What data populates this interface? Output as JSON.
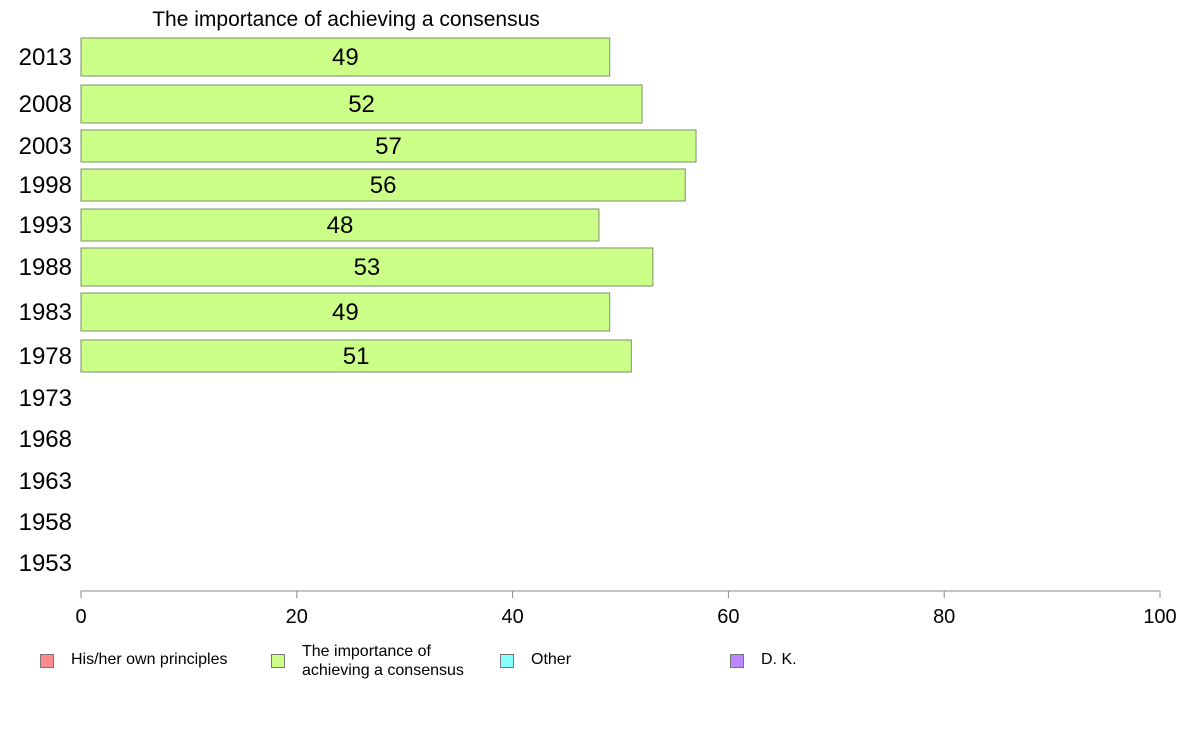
{
  "chart_data": {
    "type": "bar",
    "orientation": "horizontal",
    "title": "The importance of achieving a consensus",
    "categories": [
      "2013",
      "2008",
      "2003",
      "1998",
      "1993",
      "1988",
      "1983",
      "1978",
      "1973",
      "1968",
      "1963",
      "1958",
      "1953"
    ],
    "series": [
      {
        "name": "The importance of achieving a consensus",
        "color": "#ccff88",
        "values": [
          49,
          52,
          57,
          56,
          48,
          53,
          49,
          51,
          null,
          null,
          null,
          null,
          null
        ]
      }
    ],
    "xlim": [
      0,
      100
    ],
    "xticks": [
      "0",
      "20",
      "40",
      "60",
      "80",
      "100"
    ],
    "grid": false,
    "legend": {
      "placement": "bottom",
      "items": [
        {
          "label": "His/her own principles",
          "color": "#ff8c8c"
        },
        {
          "label": "The importance of\nachieving a consensus",
          "color": "#ccff88"
        },
        {
          "label": "Other",
          "color": "#88ffff"
        },
        {
          "label": "D. K.",
          "color": "#bb88ff"
        }
      ]
    }
  }
}
